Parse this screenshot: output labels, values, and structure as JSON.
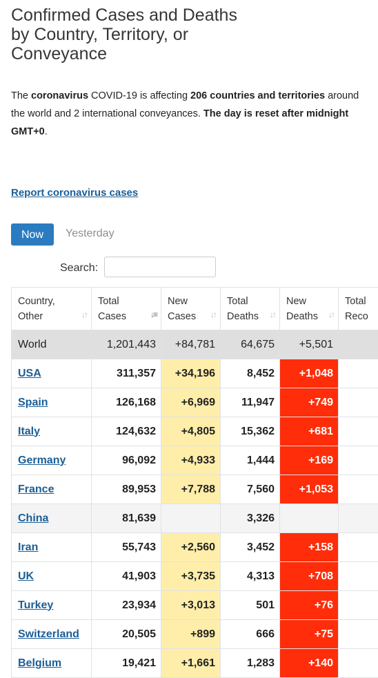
{
  "header": {
    "title_lines": [
      "Confirmed Cases and Deaths",
      "by Country, Territory, or",
      "Conveyance"
    ]
  },
  "intro": {
    "t1": "The ",
    "b1": "coronavirus",
    "t2": " COVID-19 is affecting ",
    "b2": "206 countries and territories",
    "t3": " around the world and 2 international conveyances. ",
    "b3": "The day is reset after midnight GMT+0",
    "t4": "."
  },
  "report_link": "Report coronavirus cases",
  "tabs": {
    "now": "Now",
    "yesterday": "Yesterday"
  },
  "search": {
    "label": "Search:",
    "value": "",
    "placeholder": ""
  },
  "table": {
    "columns": [
      {
        "line1": "Country,",
        "line2": "Other"
      },
      {
        "line1": "Total",
        "line2": "Cases"
      },
      {
        "line1": "New",
        "line2": "Cases"
      },
      {
        "line1": "Total",
        "line2": "Deaths"
      },
      {
        "line1": "New",
        "line2": "Deaths"
      },
      {
        "line1": "Total",
        "line2": "Reco"
      }
    ],
    "rows": [
      {
        "country": "World",
        "total_cases": "1,201,443",
        "new_cases": "+84,781",
        "total_deaths": "64,675",
        "new_deaths": "+5,501"
      },
      {
        "country": "USA",
        "total_cases": "311,357",
        "new_cases": "+34,196",
        "total_deaths": "8,452",
        "new_deaths": "+1,048"
      },
      {
        "country": "Spain",
        "total_cases": "126,168",
        "new_cases": "+6,969",
        "total_deaths": "11,947",
        "new_deaths": "+749"
      },
      {
        "country": "Italy",
        "total_cases": "124,632",
        "new_cases": "+4,805",
        "total_deaths": "15,362",
        "new_deaths": "+681"
      },
      {
        "country": "Germany",
        "total_cases": "96,092",
        "new_cases": "+4,933",
        "total_deaths": "1,444",
        "new_deaths": "+169"
      },
      {
        "country": "France",
        "total_cases": "89,953",
        "new_cases": "+7,788",
        "total_deaths": "7,560",
        "new_deaths": "+1,053"
      },
      {
        "country": "China",
        "total_cases": "81,639",
        "new_cases": "",
        "total_deaths": "3,326",
        "new_deaths": ""
      },
      {
        "country": "Iran",
        "total_cases": "55,743",
        "new_cases": "+2,560",
        "total_deaths": "3,452",
        "new_deaths": "+158"
      },
      {
        "country": "UK",
        "total_cases": "41,903",
        "new_cases": "+3,735",
        "total_deaths": "4,313",
        "new_deaths": "+708"
      },
      {
        "country": "Turkey",
        "total_cases": "23,934",
        "new_cases": "+3,013",
        "total_deaths": "501",
        "new_deaths": "+76"
      },
      {
        "country": "Switzerland",
        "total_cases": "20,505",
        "new_cases": "+899",
        "total_deaths": "666",
        "new_deaths": "+75"
      },
      {
        "country": "Belgium",
        "total_cases": "19,421",
        "new_cases": "+1,661",
        "total_deaths": "1,283",
        "new_deaths": "+140"
      }
    ]
  },
  "colors": {
    "link": "#1a5e97",
    "button": "#2b7bc1",
    "new_cases_bg": "#ffeeaa",
    "new_deaths_bg": "#ff2d0a",
    "world_row_bg": "#dfdfdf"
  }
}
